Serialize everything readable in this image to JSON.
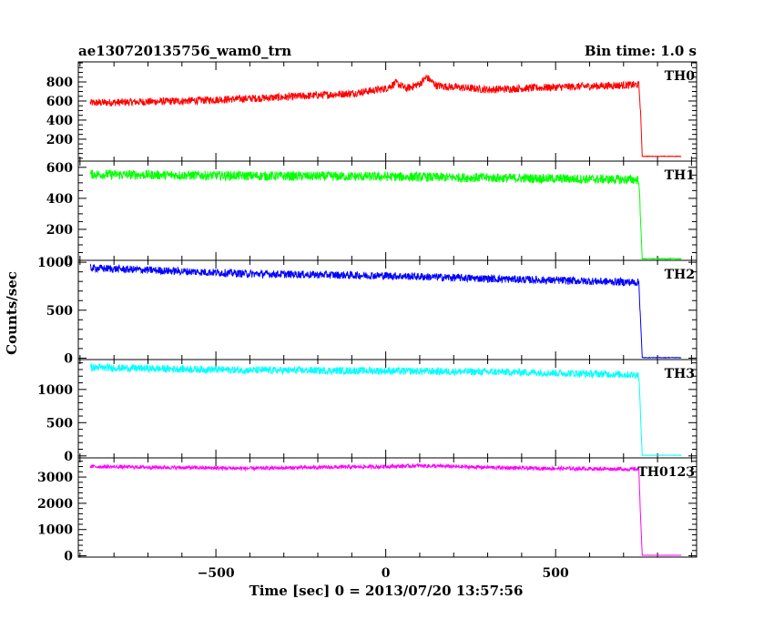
{
  "chart_data": {
    "type": "line",
    "title": "ae130720135756_wam0_trn",
    "bin_time_label": "Bin time: 1.0 s",
    "xlabel": "Time [sec] 0 = 2013/07/20 13:57:56",
    "ylabel": "Counts/sec",
    "xlim": [
      -905,
      915
    ],
    "x_ticks": [
      -500,
      0,
      500
    ],
    "x_tick_labels": [
      "−500",
      "0",
      "500"
    ],
    "grid": false,
    "legend": "none",
    "cutoff_time": 750,
    "end_time": 870,
    "panels": [
      {
        "name": "TH0",
        "color": "#ff0000",
        "ylim": [
          -30,
          1010
        ],
        "y_ticks": [
          200,
          400,
          600,
          800
        ],
        "y_tick_labels": [
          "200",
          "400",
          "600",
          "800"
        ],
        "noise": 40,
        "points": [
          [
            -870,
            580
          ],
          [
            -600,
            600
          ],
          [
            -300,
            640
          ],
          [
            -100,
            680
          ],
          [
            0,
            730
          ],
          [
            30,
            790
          ],
          [
            60,
            730
          ],
          [
            100,
            780
          ],
          [
            120,
            850
          ],
          [
            150,
            760
          ],
          [
            300,
            720
          ],
          [
            500,
            745
          ],
          [
            745,
            770
          ],
          [
            750,
            500
          ],
          [
            755,
            20
          ],
          [
            870,
            20
          ]
        ]
      },
      {
        "name": "TH1",
        "color": "#00ff00",
        "ylim": [
          0,
          640
        ],
        "y_ticks": [
          0,
          200,
          400,
          600
        ],
        "y_tick_labels": [
          "0",
          "200",
          "400",
          "600"
        ],
        "noise": 30,
        "points": [
          [
            -870,
            555
          ],
          [
            -400,
            545
          ],
          [
            0,
            540
          ],
          [
            400,
            530
          ],
          [
            745,
            520
          ],
          [
            750,
            260
          ],
          [
            755,
            10
          ],
          [
            870,
            10
          ]
        ]
      },
      {
        "name": "TH2",
        "color": "#0000ff",
        "ylim": [
          -15,
          1020
        ],
        "y_ticks": [
          0,
          500,
          1000
        ],
        "y_tick_labels": [
          "0",
          "500",
          "1000"
        ],
        "noise": 40,
        "points": [
          [
            -870,
            940
          ],
          [
            -400,
            880
          ],
          [
            0,
            860
          ],
          [
            400,
            820
          ],
          [
            745,
            790
          ],
          [
            750,
            400
          ],
          [
            755,
            5
          ],
          [
            870,
            5
          ]
        ]
      },
      {
        "name": "TH3",
        "color": "#00ffff",
        "ylim": [
          -30,
          1450
        ],
        "y_ticks": [
          0,
          500,
          1000
        ],
        "y_tick_labels": [
          "0",
          "500",
          "1000"
        ],
        "noise": 55,
        "points": [
          [
            -870,
            1330
          ],
          [
            -400,
            1290
          ],
          [
            0,
            1280
          ],
          [
            400,
            1260
          ],
          [
            745,
            1220
          ],
          [
            750,
            600
          ],
          [
            755,
            10
          ],
          [
            870,
            10
          ]
        ]
      },
      {
        "name": "TH0123",
        "color": "#ff00ff",
        "ylim": [
          -50,
          3730
        ],
        "y_ticks": [
          0,
          1000,
          2000,
          3000
        ],
        "y_tick_labels": [
          "0",
          "1000",
          "2000",
          "3000"
        ],
        "noise": 70,
        "points": [
          [
            -870,
            3400
          ],
          [
            -400,
            3330
          ],
          [
            0,
            3400
          ],
          [
            100,
            3430
          ],
          [
            400,
            3340
          ],
          [
            745,
            3300
          ],
          [
            750,
            1500
          ],
          [
            755,
            20
          ],
          [
            870,
            20
          ]
        ]
      }
    ]
  }
}
